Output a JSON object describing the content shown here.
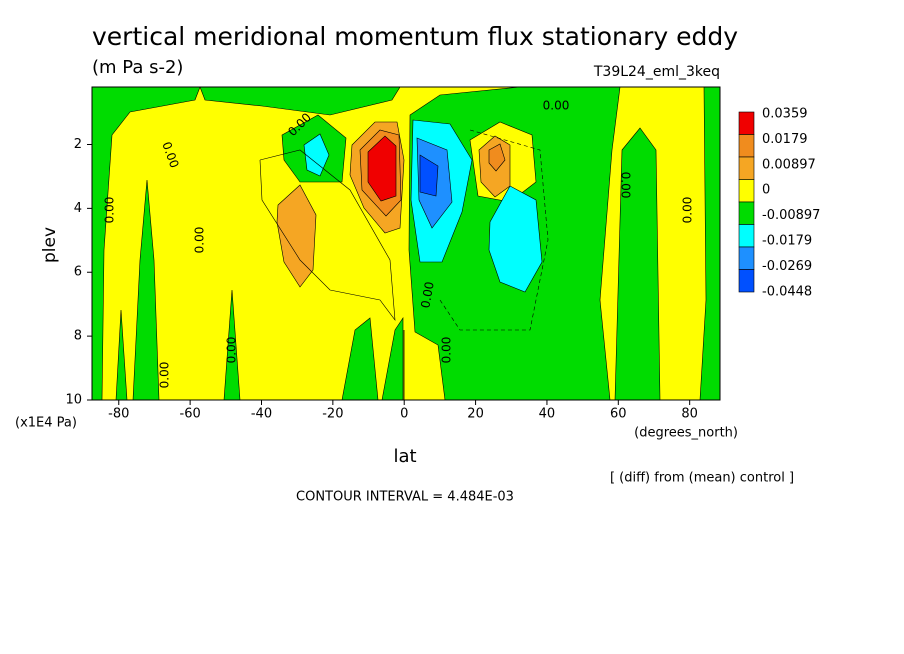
{
  "chart_data": {
    "type": "contour",
    "title": "vertical meridional momentum flux stationary eddy",
    "subtitle": "(m Pa s-2)",
    "run_label": "T39L24_eml_3keq",
    "x_label": "lat",
    "x_units": "(degrees_north)",
    "y_label": "plev",
    "y_units": "(x1E4 Pa)",
    "xlim": [
      -87.5,
      88.5
    ],
    "ylim": [
      10,
      0.2
    ],
    "xticks": [
      -80,
      -60,
      -40,
      -20,
      0,
      20,
      40,
      60,
      80
    ],
    "yticks": [
      2,
      4,
      6,
      8,
      10
    ],
    "colorbar": {
      "levels": [
        0.0359,
        0.0179,
        0.00897,
        0,
        -0.00897,
        -0.0179,
        -0.0269,
        -0.0448
      ],
      "colors": [
        "#f00000",
        "#f08c1e",
        "#f5a623",
        "#ffff00",
        "#00dc00",
        "#00ffff",
        "#1e90ff",
        "#0050ff"
      ]
    },
    "contour_labels": [
      "0.00",
      "0.00",
      "0.00",
      "0.00",
      "0.00",
      "0.00",
      "0.00",
      "0.00",
      "0.00",
      "0.00",
      "0.00"
    ],
    "contour_interval_text": "CONTOUR INTERVAL = 4.484E-03",
    "note": "[ (diff) from (mean) control ]"
  }
}
